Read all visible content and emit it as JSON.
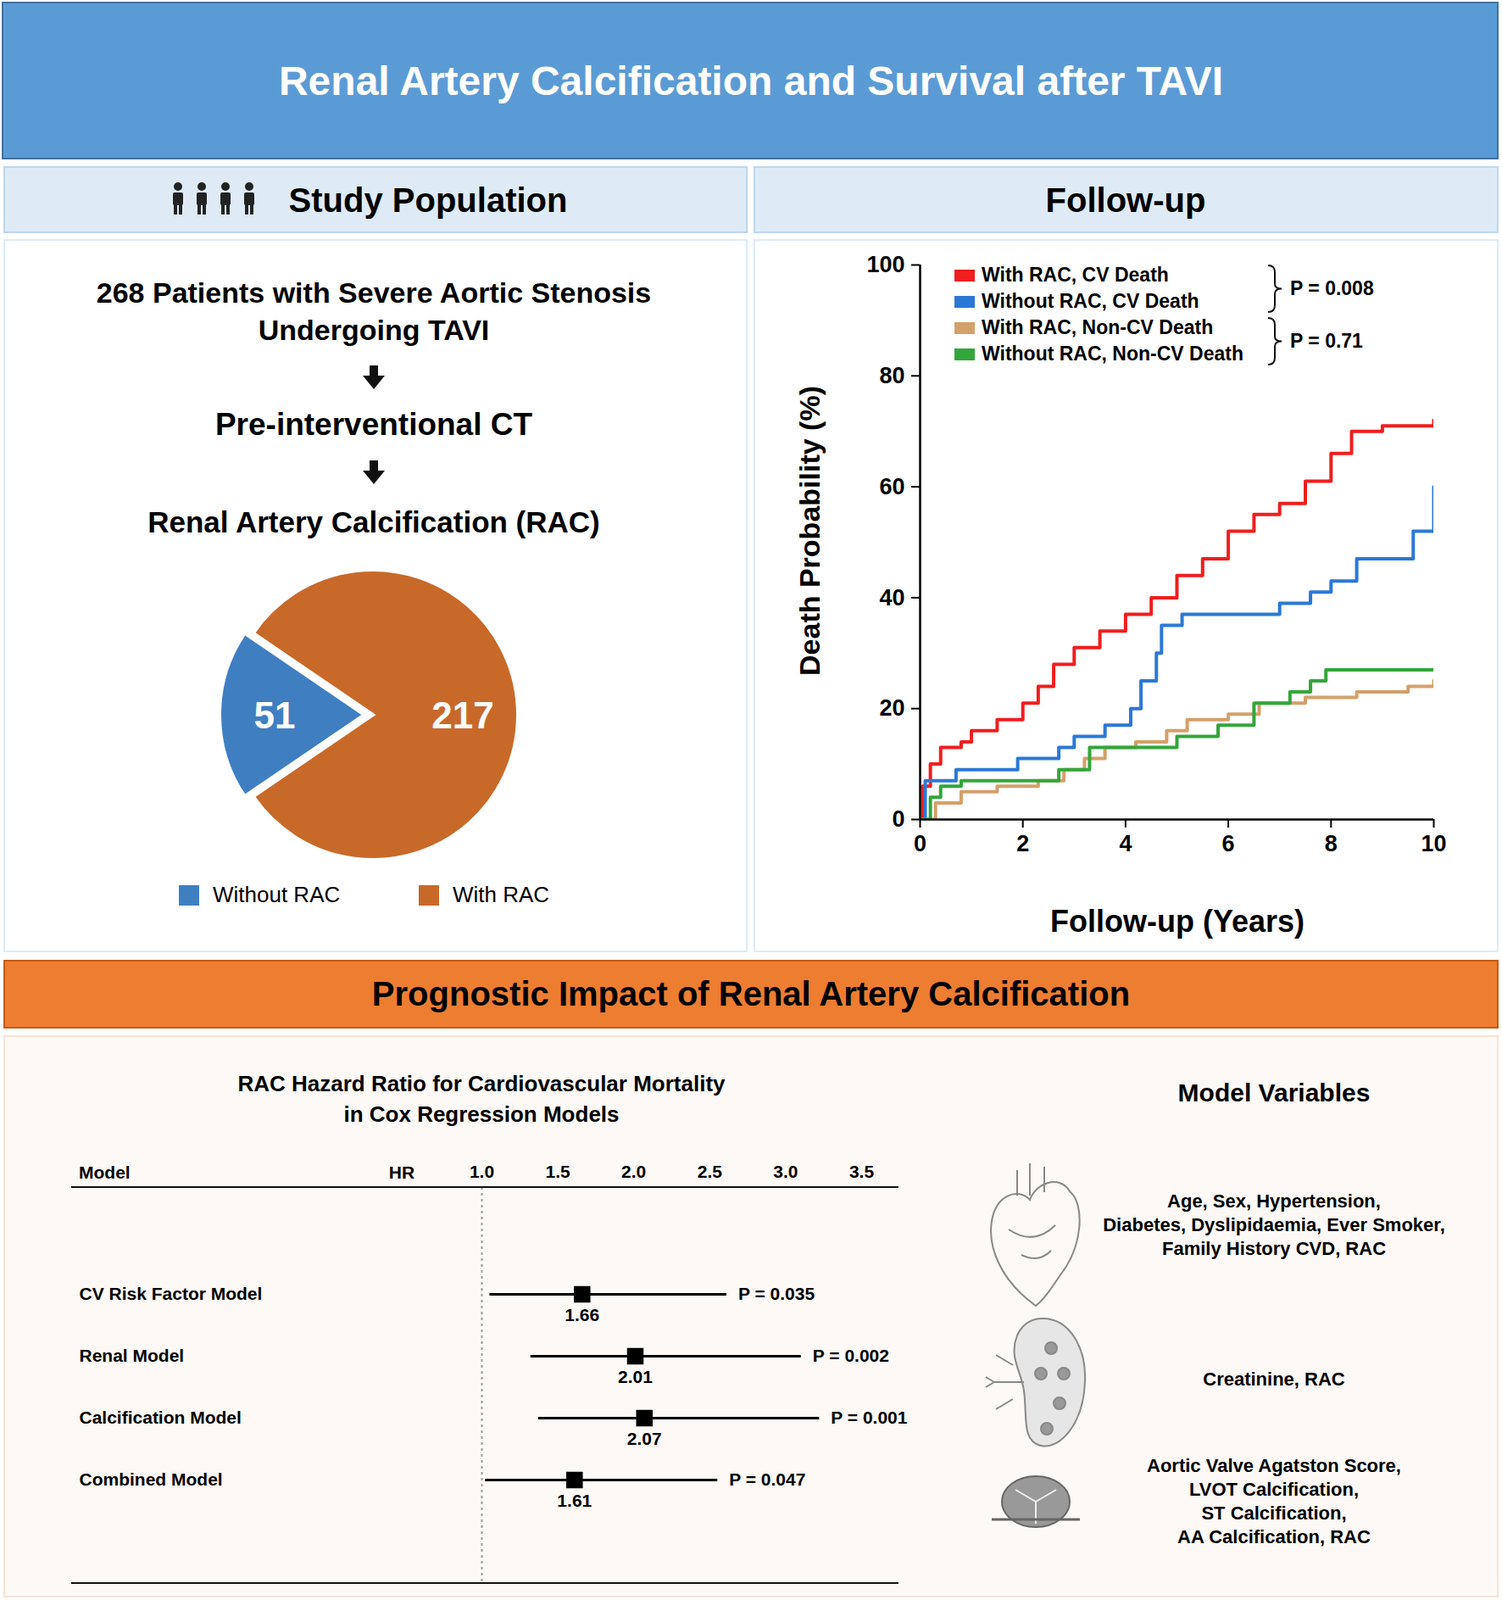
{
  "header": {
    "title": "Renal Artery Calcification and Survival after TAVI"
  },
  "study_population": {
    "heading": "Study Population",
    "flow": [
      "268 Patients with Severe Aortic Stenosis\nUndergoing TAVI",
      "Pre-interventional CT",
      "Renal Artery Calcification (RAC)"
    ]
  },
  "follow_up": {
    "heading": "Follow-up"
  },
  "prognostic": {
    "heading": "Prognostic Impact of Renal Artery Calcification",
    "model_variables": {
      "heading": "Model Variables",
      "groups": [
        "Age, Sex, Hypertension,\nDiabetes, Dyslipidaemia, Ever Smoker,\nFamily History CVD, RAC",
        "Creatinine, RAC",
        "Aortic Valve Agatston Score,\nLVOT Calcification,\nST Calcification,\nAA Calcification, RAC"
      ]
    }
  },
  "chart_data": [
    {
      "type": "pie",
      "categories": [
        "Without RAC",
        "With RAC"
      ],
      "values": [
        51,
        217
      ],
      "colors": [
        "#3f7fc1",
        "#c8692a"
      ],
      "data_labels": true,
      "legend": "bottom"
    },
    {
      "type": "line",
      "line_style": "step",
      "x_label": "Follow-up (Years)",
      "y_label": "Death Probability (%)",
      "xlim": [
        0,
        10
      ],
      "xticks": [
        0,
        2,
        4,
        6,
        8,
        10
      ],
      "ylim": [
        0,
        100
      ],
      "yticks": [
        0,
        20,
        40,
        60,
        80,
        100
      ],
      "legend": "top-left",
      "series": [
        {
          "name": "With RAC, CV Death",
          "color": "#f01e1e",
          "x": [
            0,
            0.05,
            0.2,
            0.4,
            0.8,
            1,
            1.5,
            2,
            2.3,
            2.6,
            3,
            3.5,
            4,
            4.5,
            5,
            5.5,
            6,
            6.5,
            7,
            7.5,
            8,
            8.4,
            9,
            10
          ],
          "values": [
            0,
            6,
            10,
            13,
            14,
            16,
            18,
            21,
            24,
            28,
            31,
            34,
            37,
            40,
            44,
            47,
            52,
            55,
            57,
            61,
            66,
            70,
            71,
            72
          ]
        },
        {
          "name": "Without RAC, CV Death",
          "color": "#2b78d6",
          "x": [
            0,
            0.1,
            0.7,
            1.9,
            2.7,
            3,
            3.6,
            4.1,
            4.3,
            4.6,
            4.7,
            5.1,
            7,
            7.6,
            8,
            8.5,
            9.6,
            10
          ],
          "values": [
            0,
            7,
            9,
            11,
            13,
            15,
            17,
            20,
            25,
            30,
            35,
            37,
            39,
            41,
            43,
            47,
            52,
            60
          ]
        },
        {
          "name": "With RAC, Non-CV Death",
          "color": "#d4a06a",
          "x": [
            0,
            0.3,
            0.8,
            1.5,
            2.3,
            2.8,
            3.2,
            3.6,
            4.2,
            4.8,
            5.2,
            6,
            6.6,
            7.5,
            8.5,
            9.5,
            10
          ],
          "values": [
            0,
            3,
            5,
            6,
            7,
            9,
            11,
            13,
            14,
            16,
            18,
            19,
            21,
            22,
            23,
            24,
            25
          ]
        },
        {
          "name": "Without RAC, Non-CV Death",
          "color": "#33a63a",
          "x": [
            0,
            0.2,
            0.4,
            0.8,
            2.7,
            3.3,
            5,
            5.8,
            6.5,
            7.2,
            7.6,
            7.9,
            10
          ],
          "values": [
            0,
            4,
            6,
            7,
            9,
            13,
            15,
            17,
            21,
            23,
            25,
            27,
            27
          ]
        }
      ],
      "annotations": [
        {
          "text": "P = 0.008",
          "series": [
            "With RAC, CV Death",
            "Without RAC, CV Death"
          ]
        },
        {
          "text": "P = 0.71",
          "series": [
            "With RAC, Non-CV Death",
            "Without RAC, Non-CV Death"
          ]
        }
      ]
    },
    {
      "type": "forest",
      "title": "RAC Hazard Ratio for Cardiovascular Mortality\nin Cox Regression Models",
      "column_labels": [
        "Model",
        "HR"
      ],
      "categories": [
        "CV Risk Factor Model",
        "Renal Model",
        "Calcification Model",
        "Combined Model"
      ],
      "values": [
        1.66,
        2.01,
        2.07,
        1.61
      ],
      "ci_low": [
        1.05,
        1.32,
        1.37,
        1.02
      ],
      "ci_high": [
        2.61,
        3.1,
        3.22,
        2.55
      ],
      "p_labels": [
        "P = 0.035",
        "P = 0.002",
        "P = 0.001",
        "P = 0.047"
      ],
      "xlim": [
        1,
        3.5
      ],
      "xticks": [
        {
          "value": 1,
          "label": "1.0"
        },
        1.5,
        {
          "value": 2,
          "label": "2.0"
        },
        2.5,
        {
          "value": 3,
          "label": "3.0"
        },
        3.5
      ],
      "marker": "square",
      "color": "#000000",
      "data_labels": true
    }
  ]
}
